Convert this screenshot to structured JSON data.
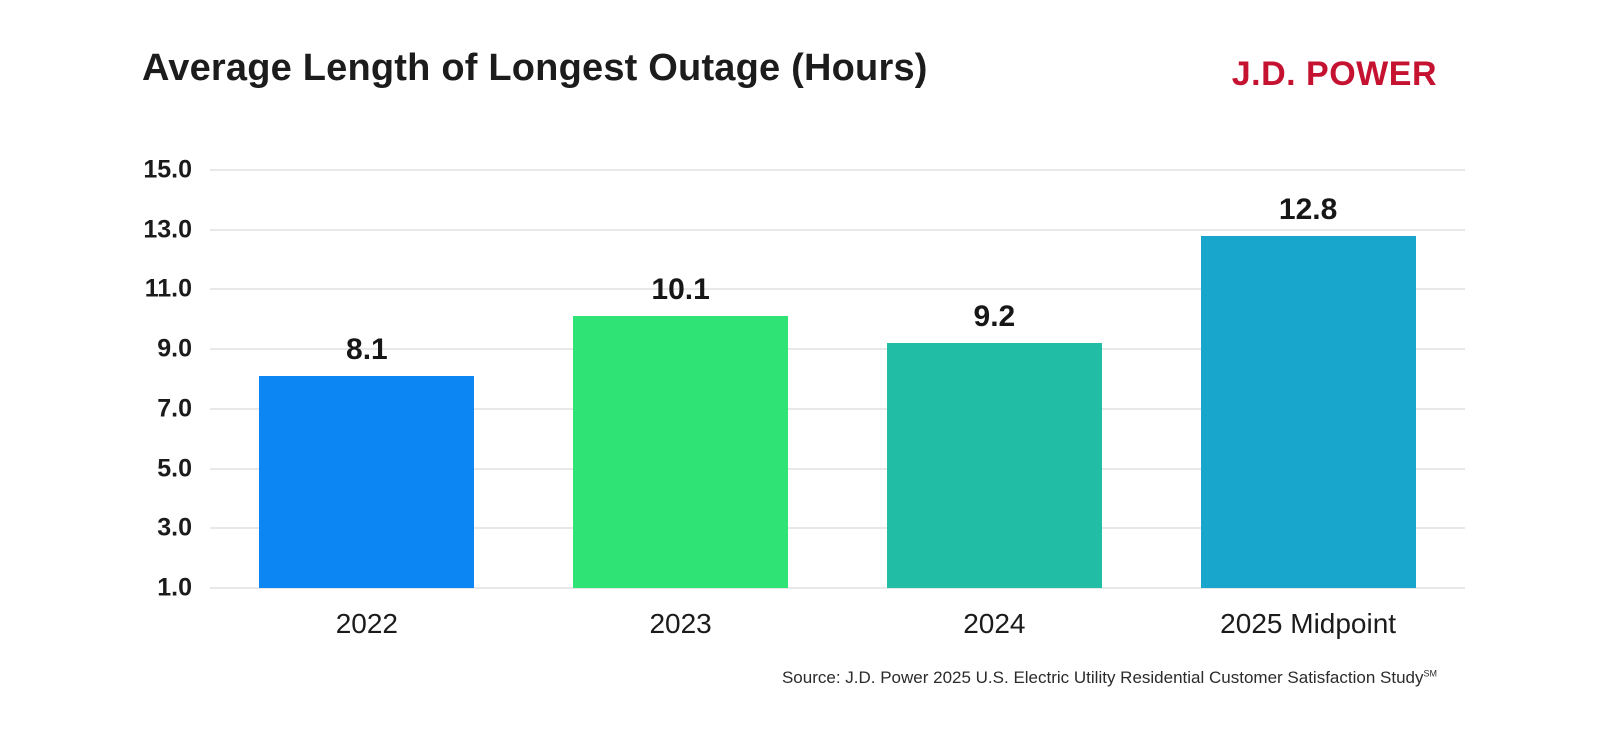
{
  "header": {
    "title": "Average Length of Longest Outage (Hours)",
    "brand": "J.D. POWER",
    "brand_color": "#c51230"
  },
  "chart_data": {
    "type": "bar",
    "title": "Average Length of Longest Outage (Hours)",
    "categories": [
      "2022",
      "2023",
      "2024",
      "2025 Midpoint"
    ],
    "values": [
      8.1,
      10.1,
      9.2,
      12.8
    ],
    "value_labels": [
      "8.1",
      "10.1",
      "9.2",
      "12.8"
    ],
    "bar_colors": [
      "#0b86f3",
      "#2fe475",
      "#22bda5",
      "#18a6cc"
    ],
    "xlabel": "",
    "ylabel": "",
    "ylim": [
      1.0,
      15.0
    ],
    "yticks": [
      15.0,
      13.0,
      11.0,
      9.0,
      7.0,
      5.0,
      3.0,
      1.0
    ],
    "ytick_labels": [
      "15.0",
      "13.0",
      "11.0",
      "9.0",
      "7.0",
      "5.0",
      "3.0",
      "1.0"
    ],
    "grid": true,
    "grid_color": "#e8e8e8",
    "legend": false
  },
  "footer": {
    "source": "Source: J.D. Power 2025 U.S. Electric Utility Residential Customer Satisfaction Study",
    "source_mark": "SM"
  }
}
